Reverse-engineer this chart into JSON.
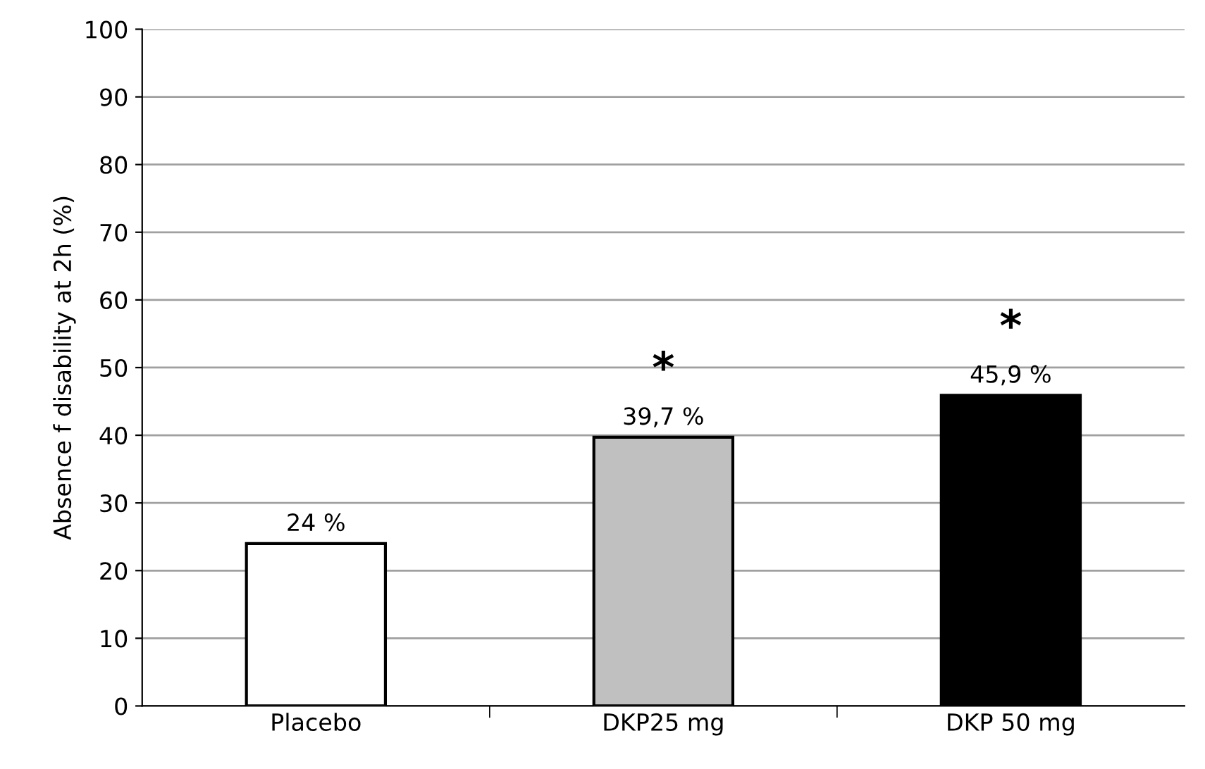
{
  "chart_data": {
    "type": "bar",
    "ylabel": "Absence f disability at 2h (%)",
    "categories": [
      "Placebo",
      "DKP25 mg",
      "DKP 50 mg"
    ],
    "values": [
      24,
      39.7,
      45.9
    ],
    "colors": [
      "#ffffff",
      "#c0c0c0",
      "#000000"
    ],
    "value_labels": [
      "24 %",
      "39,7 %",
      "45,9 %"
    ],
    "annotations": [
      "*",
      "*"
    ],
    "ylim": [
      0,
      100
    ],
    "yticks": [
      0,
      10,
      20,
      30,
      40,
      50,
      60,
      70,
      80,
      90,
      100
    ],
    "grid": "y",
    "legend": false
  }
}
